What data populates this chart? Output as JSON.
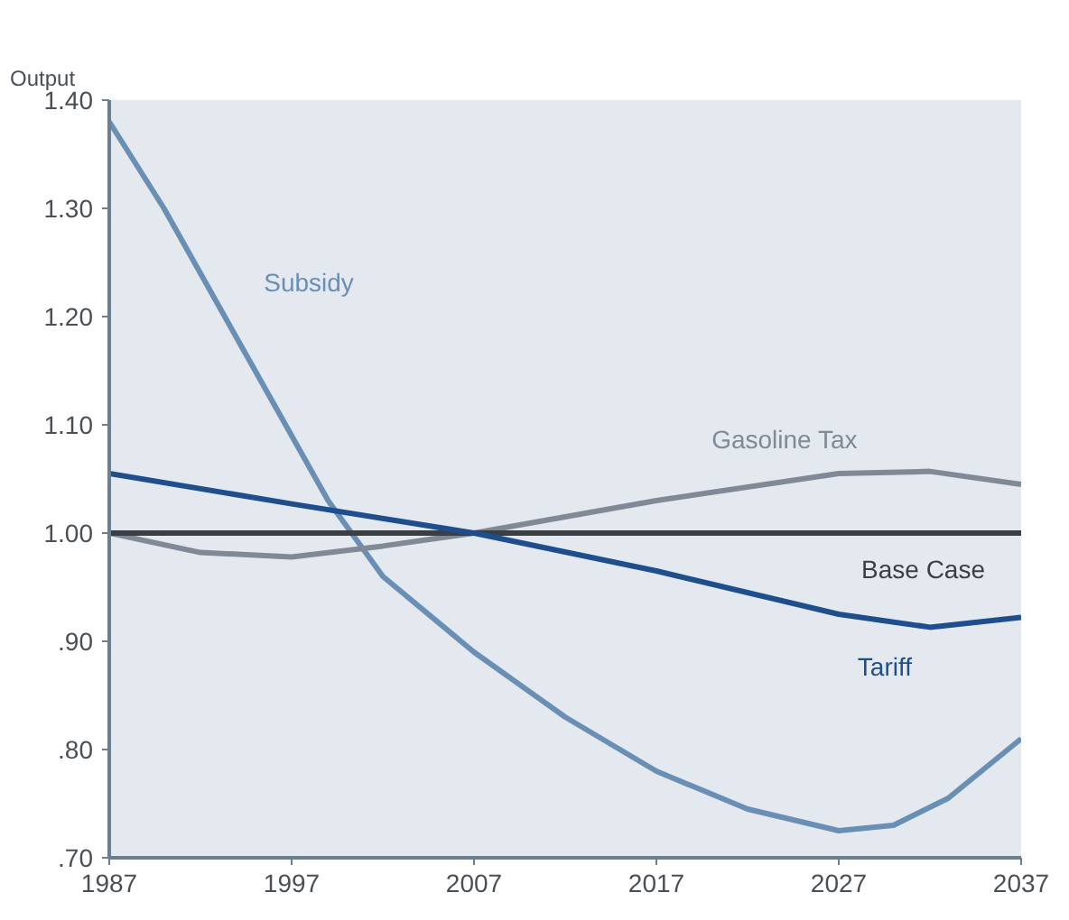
{
  "chart_data": {
    "type": "line",
    "ylabel": "Output",
    "xlim": [
      1987,
      2037
    ],
    "xticks": [
      1987,
      1997,
      2007,
      2017,
      2027,
      2037
    ],
    "ylim": [
      0.7,
      1.4
    ],
    "yticks": [
      {
        "value": 0.7,
        "label": ".70"
      },
      {
        "value": 0.8,
        "label": ".80"
      },
      {
        "value": 0.9,
        "label": ".90"
      },
      {
        "value": 1.0,
        "label": "1.00"
      },
      {
        "value": 1.1,
        "label": "1.10"
      },
      {
        "value": 1.2,
        "label": "1.20"
      },
      {
        "value": 1.3,
        "label": "1.30"
      },
      {
        "value": 1.4,
        "label": "1.40"
      }
    ],
    "grid": false,
    "series": [
      {
        "name": "Subsidy",
        "color": "#6a8fb5",
        "x": [
          1987,
          1990,
          1993,
          1996,
          1999,
          2002,
          2007,
          2012,
          2017,
          2022,
          2027,
          2030,
          2033,
          2037
        ],
        "values": [
          1.38,
          1.3,
          1.21,
          1.12,
          1.03,
          0.96,
          0.89,
          0.83,
          0.78,
          0.745,
          0.725,
          0.73,
          0.755,
          0.81
        ]
      },
      {
        "name": "Gasoline Tax",
        "color": "#7f8a96",
        "x": [
          1987,
          1992,
          1997,
          2002,
          2007,
          2017,
          2027,
          2032,
          2037
        ],
        "values": [
          1.0,
          0.982,
          0.978,
          0.988,
          1.0,
          1.03,
          1.055,
          1.057,
          1.045
        ]
      },
      {
        "name": "Base Case",
        "color": "#3a3f44",
        "x": [
          1987,
          2037
        ],
        "values": [
          1.0,
          1.0
        ]
      },
      {
        "name": "Tariff",
        "color": "#1f4e8c",
        "x": [
          1987,
          1997,
          2007,
          2017,
          2027,
          2032,
          2037
        ],
        "values": [
          1.055,
          1.027,
          1.0,
          0.965,
          0.925,
          0.913,
          0.922
        ]
      }
    ]
  }
}
